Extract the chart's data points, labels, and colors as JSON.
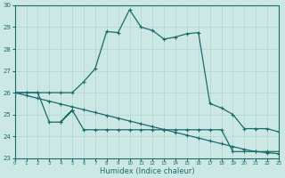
{
  "xlabel": "Humidex (Indice chaleur)",
  "bg_color": "#cce8e4",
  "grid_color": "#aed4ce",
  "line_color": "#1a6b6b",
  "xlim": [
    0,
    23
  ],
  "ylim": [
    23,
    30
  ],
  "xticks": [
    0,
    1,
    2,
    3,
    4,
    5,
    6,
    7,
    8,
    9,
    10,
    11,
    12,
    13,
    14,
    15,
    16,
    17,
    18,
    19,
    20,
    21,
    22,
    23
  ],
  "yticks": [
    23,
    24,
    25,
    26,
    27,
    28,
    29,
    30
  ],
  "curve1_x": [
    0,
    1,
    2,
    3,
    4,
    5,
    6,
    7,
    8,
    9,
    10,
    11,
    12,
    13,
    14,
    15,
    16,
    17,
    18,
    19,
    20,
    21,
    22,
    23
  ],
  "curve1_y": [
    26.0,
    26.0,
    26.0,
    26.0,
    26.0,
    26.0,
    26.5,
    27.1,
    28.8,
    28.75,
    29.8,
    29.0,
    28.85,
    28.45,
    28.55,
    28.7,
    28.75,
    25.5,
    25.3,
    25.0,
    24.35,
    24.35,
    24.35,
    24.2
  ],
  "curve2_x": [
    0,
    1,
    2,
    3,
    4,
    5,
    6,
    7,
    8,
    9,
    10,
    11,
    12,
    13,
    14,
    15,
    16,
    17,
    18,
    19,
    20,
    21,
    22,
    23
  ],
  "curve2_y": [
    26.0,
    25.87,
    25.74,
    25.61,
    25.48,
    25.35,
    25.22,
    25.09,
    24.96,
    24.83,
    24.7,
    24.57,
    24.44,
    24.31,
    24.18,
    24.05,
    23.92,
    23.79,
    23.66,
    23.53,
    23.4,
    23.3,
    23.25,
    23.2
  ],
  "curve3_x": [
    0,
    1,
    2,
    3,
    4,
    5,
    4,
    5,
    6,
    7,
    8,
    9,
    10,
    11,
    12,
    13,
    14,
    15,
    16,
    17,
    18,
    19,
    20,
    21,
    22,
    23
  ],
  "curve3_y": [
    26.0,
    26.0,
    26.0,
    24.65,
    24.65,
    25.2,
    24.65,
    25.2,
    24.3,
    24.3,
    24.3,
    24.3,
    24.3,
    24.3,
    24.3,
    24.3,
    24.3,
    24.3,
    24.3,
    24.3,
    24.3,
    23.3,
    23.3,
    23.3,
    23.3,
    23.3
  ]
}
